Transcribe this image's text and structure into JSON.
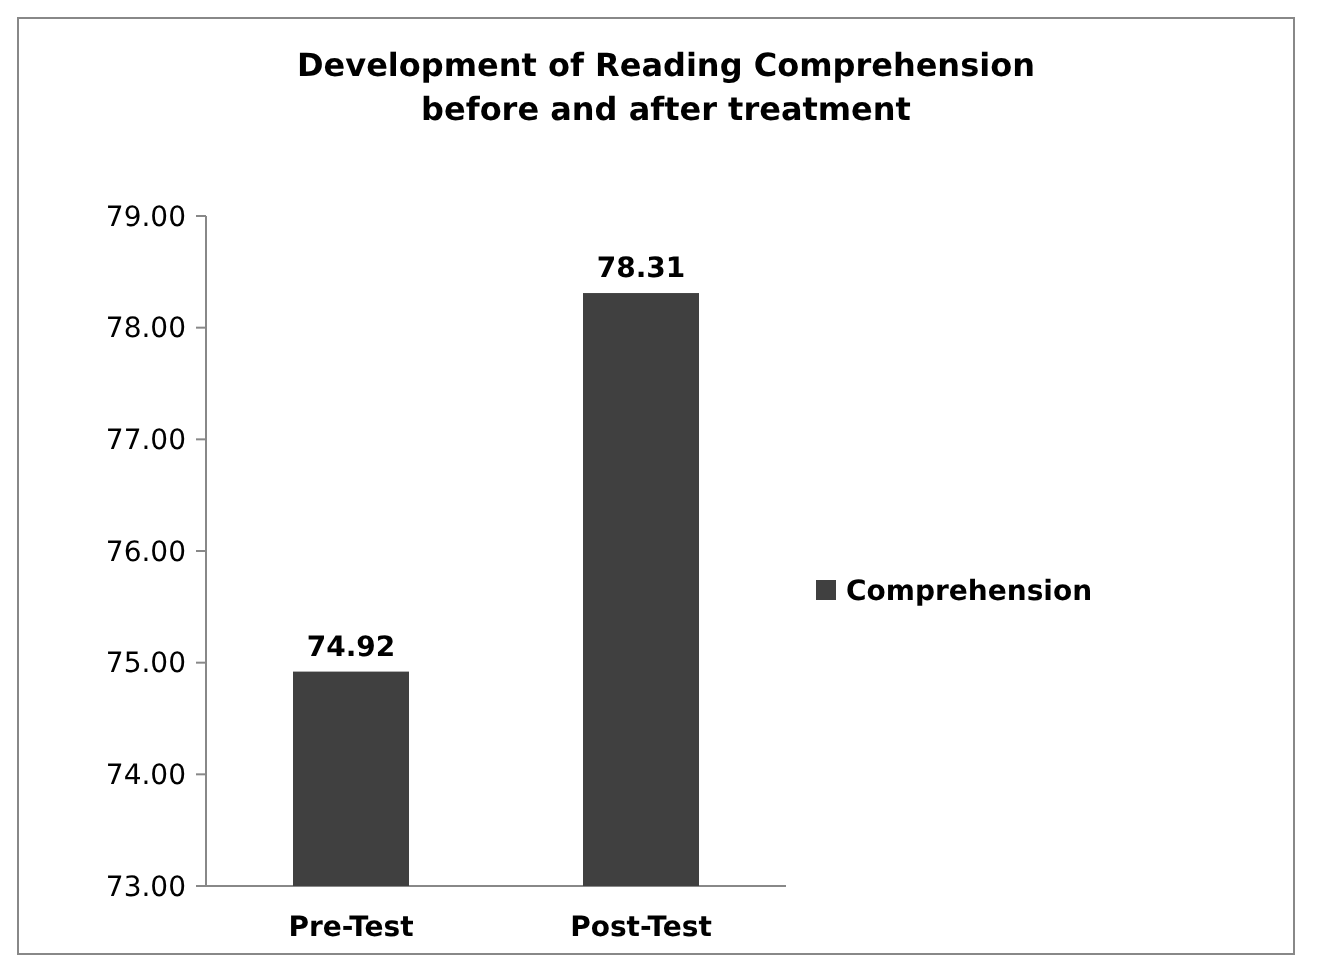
{
  "chart_data": {
    "type": "bar",
    "title": "Development of Reading Comprehension before and after treatment",
    "categories": [
      "Pre-Test",
      "Post-Test"
    ],
    "series": [
      {
        "name": "Comprehension",
        "color": "#404040",
        "values": [
          74.92,
          78.31
        ]
      }
    ],
    "ylim": [
      73,
      79
    ],
    "yticks": [
      {
        "value": 73,
        "label": "73.00"
      },
      {
        "value": 74,
        "label": "74.00"
      },
      {
        "value": 75,
        "label": "75.00"
      },
      {
        "value": 76,
        "label": "76.00"
      },
      {
        "value": 77,
        "label": "77.00"
      },
      {
        "value": 78,
        "label": "78.00"
      },
      {
        "value": 79,
        "label": "79.00"
      }
    ],
    "data_labels": true,
    "legend": "right",
    "grid": false
  }
}
